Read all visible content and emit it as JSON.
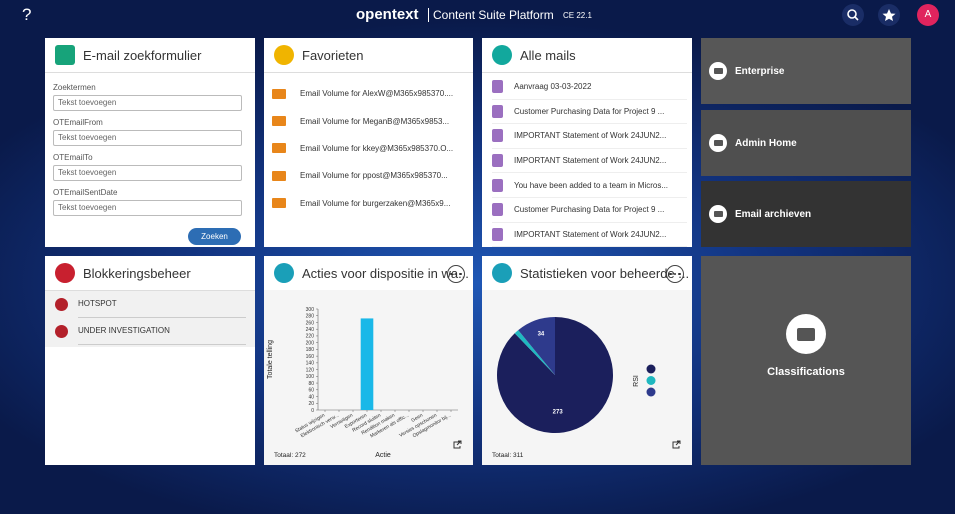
{
  "header": {
    "help": "?",
    "logo": "opentext",
    "product": "Content Suite Platform",
    "version": "CE 22.1",
    "avatar": "A"
  },
  "search_form": {
    "title": "E-mail zoekformulier",
    "fields": [
      {
        "label": "Zoektermen",
        "placeholder": "Tekst toevoegen"
      },
      {
        "label": "OTEmailFrom",
        "placeholder": "Tekst toevoegen"
      },
      {
        "label": "OTEmailTo",
        "placeholder": "Tekst toevoegen"
      },
      {
        "label": "OTEmailSentDate",
        "placeholder": "Tekst toevoegen"
      }
    ],
    "button": "Zoeken"
  },
  "favorites": {
    "title": "Favorieten",
    "items": [
      "Email Volume for AlexW@M365x985370....",
      "Email Volume for MeganB@M365x9853...",
      "Email Volume for kkey@M365x985370.O...",
      "Email Volume for ppost@M365x985370...",
      "Email Volume for burgerzaken@M365x9..."
    ]
  },
  "mails": {
    "title": "Alle mails",
    "items": [
      "Aanvraag 03-03-2022",
      "Customer Purchasing Data for Project 9 ...",
      "IMPORTANT Statement of Work 24JUN2...",
      "IMPORTANT Statement of Work 24JUN2...",
      "You have been added to a team in Micros...",
      "Customer Purchasing Data for Project 9 ...",
      "IMPORTANT Statement of Work 24JUN2..."
    ]
  },
  "shortcuts": [
    "Enterprise",
    "Admin Home",
    "Email archieven"
  ],
  "holds": {
    "title": "Blokkeringsbeheer",
    "items": [
      "HOTSPOT",
      "UNDER INVESTIGATION"
    ]
  },
  "classifications": "Classifications",
  "chart_data": [
    {
      "type": "bar",
      "title": "Acties voor dispositie in wa...",
      "ylabel": "Totale telling",
      "xlabel": "Actie",
      "categories": [
        "Status wijzigen",
        "Elektronisch verw...",
        "Vernietigen",
        "Exporteren",
        "Record sluiten",
        "Rendition maken",
        "Markeren als offic...",
        "Geen",
        "Versies opschonen",
        "Opslagmonitor bij..."
      ],
      "values": [
        0,
        0,
        0,
        272,
        0,
        0,
        0,
        0,
        0,
        0
      ],
      "color": "#1ab8e8",
      "ylim": [
        0,
        300
      ],
      "yticks": [
        0,
        20,
        40,
        60,
        80,
        100,
        120,
        140,
        160,
        180,
        200,
        220,
        240,
        260,
        280,
        300
      ],
      "footer": "Totaal: 272"
    },
    {
      "type": "pie",
      "title": "Statistieken voor beheerde ...",
      "legend_title": "RSI",
      "values": [
        273,
        4,
        34
      ],
      "colors": [
        "#1b1f5c",
        "#1fb8c0",
        "#2e3a8c"
      ],
      "footer": "Totaal: 311"
    }
  ]
}
